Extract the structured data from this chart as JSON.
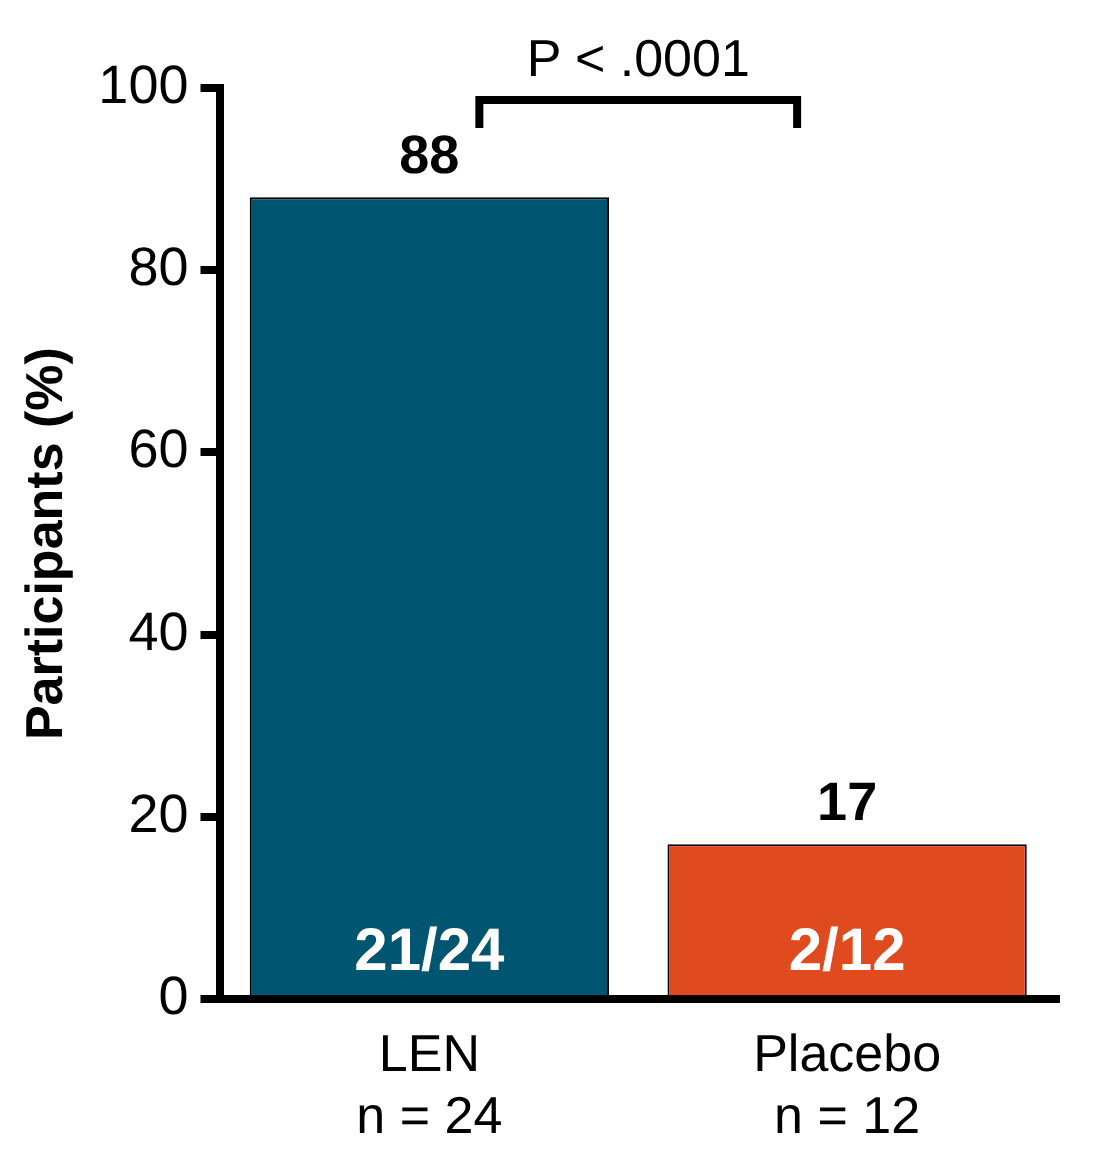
{
  "chart_data": {
    "type": "bar",
    "ylabel": "Participants (%)",
    "categories": [
      "LEN\nn = 24",
      "Placebo\nn = 12"
    ],
    "values": [
      88,
      17
    ],
    "colors": [
      "#005670",
      "#e04a1f"
    ],
    "ylim": [
      0,
      100
    ],
    "yticks": [
      0,
      20,
      40,
      60,
      80,
      100
    ],
    "grid": false,
    "data_labels": true,
    "annotations": [
      {
        "text": "21/24",
        "x": "LEN\nn = 24",
        "y": 0
      },
      {
        "text": "2/12",
        "x": "Placebo\nn = 12",
        "y": 0
      },
      "P < .0001"
    ]
  }
}
